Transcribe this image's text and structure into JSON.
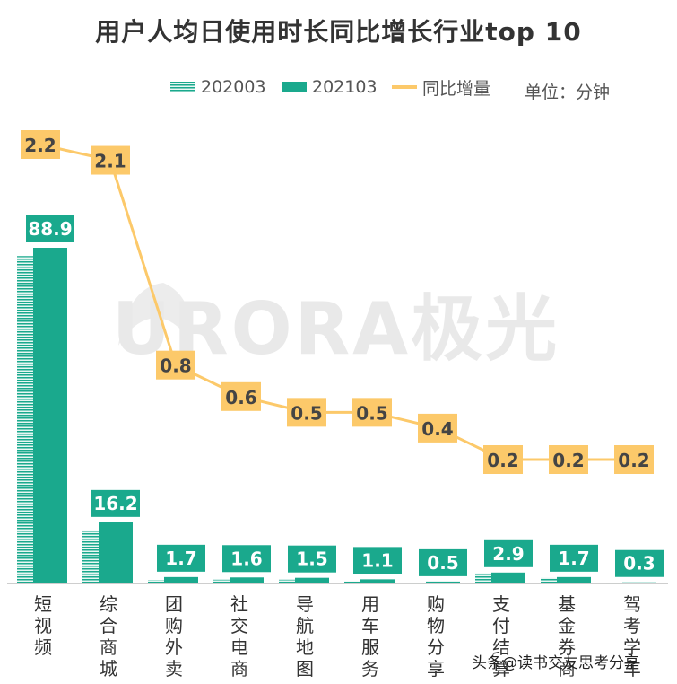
{
  "watermark": {
    "text": "URORA极光"
  },
  "credit": "头条@读书交友思考分享",
  "unit": "单位：分钟",
  "colors": {
    "bar2020": "#87d8c6",
    "bar2021": "#1aa98d",
    "line": "#fcc96a",
    "labelBox": "#fcc96a",
    "labelText": "#444444",
    "barLabelText": "#ffffff"
  },
  "chart_data": {
    "type": "bar",
    "title": "用户人均日使用时长同比增长行业top 10",
    "categories": [
      "短视频",
      "综合商城",
      "团购外卖",
      "社交电商",
      "导航地图",
      "用车服务",
      "购物分享",
      "支付结算",
      "基金券商",
      "驾考学车"
    ],
    "series": [
      {
        "name": "202003",
        "type": "bar",
        "values": [
          86.7,
          14.1,
          0.9,
          1.0,
          1.0,
          0.6,
          0.1,
          2.7,
          1.5,
          0.1
        ]
      },
      {
        "name": "202103",
        "type": "bar",
        "values": [
          88.9,
          16.2,
          1.7,
          1.6,
          1.5,
          1.1,
          0.5,
          2.9,
          1.7,
          0.3
        ]
      },
      {
        "name": "同比增量",
        "type": "line",
        "values": [
          2.2,
          2.1,
          0.8,
          0.6,
          0.5,
          0.5,
          0.4,
          0.2,
          0.2,
          0.2
        ]
      }
    ],
    "ylim": [
      0,
      95
    ],
    "line_ylim": [
      0,
      2.5
    ],
    "legend_position": "top-right",
    "grid": false
  }
}
